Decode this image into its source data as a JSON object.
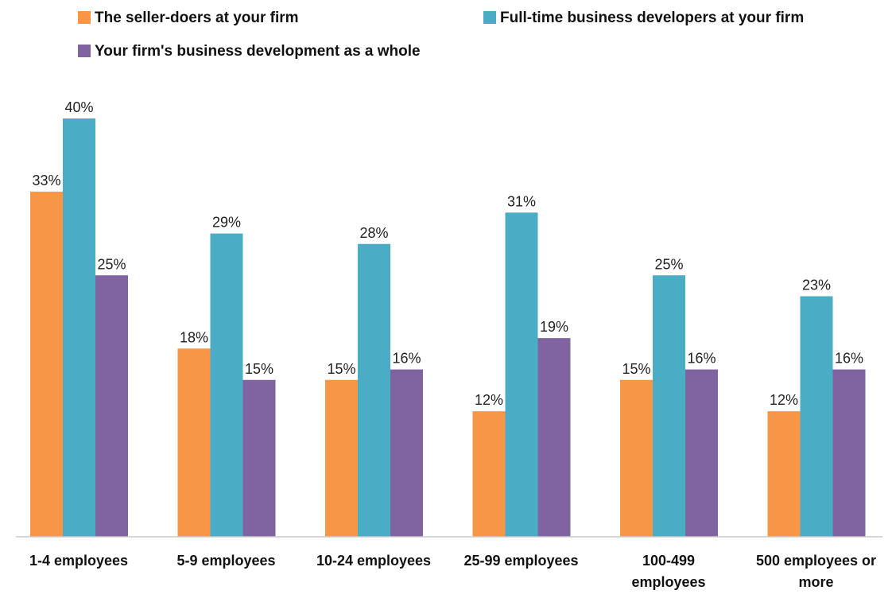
{
  "chart_data": {
    "type": "bar",
    "title": "",
    "xlabel": "",
    "ylabel": "",
    "ylim": [
      0,
      45
    ],
    "grid": false,
    "legend_position": "top",
    "categories": [
      [
        "1-4 employees"
      ],
      [
        "5-9 employees"
      ],
      [
        "10-24 employees"
      ],
      [
        "25-99 employees"
      ],
      [
        "100-499",
        "employees"
      ],
      [
        "500 employees or",
        "more"
      ]
    ],
    "series": [
      {
        "name": "The seller-doers at your firm",
        "color": "#f79646",
        "values": [
          33,
          18,
          15,
          12,
          15,
          12
        ],
        "labels": [
          "33%",
          "18%",
          "15%",
          "12%",
          "15%",
          "12%"
        ]
      },
      {
        "name": "Full-time business developers at your firm",
        "color": "#4bacc6",
        "values": [
          40,
          29,
          28,
          31,
          25,
          23
        ],
        "labels": [
          "40%",
          "29%",
          "28%",
          "31%",
          "25%",
          "23%"
        ]
      },
      {
        "name": "Your firm's business development as a whole",
        "color": "#8064a2",
        "values": [
          25,
          15,
          16,
          19,
          16,
          16
        ],
        "labels": [
          "25%",
          "15%",
          "16%",
          "19%",
          "16%",
          "16%"
        ]
      }
    ]
  }
}
